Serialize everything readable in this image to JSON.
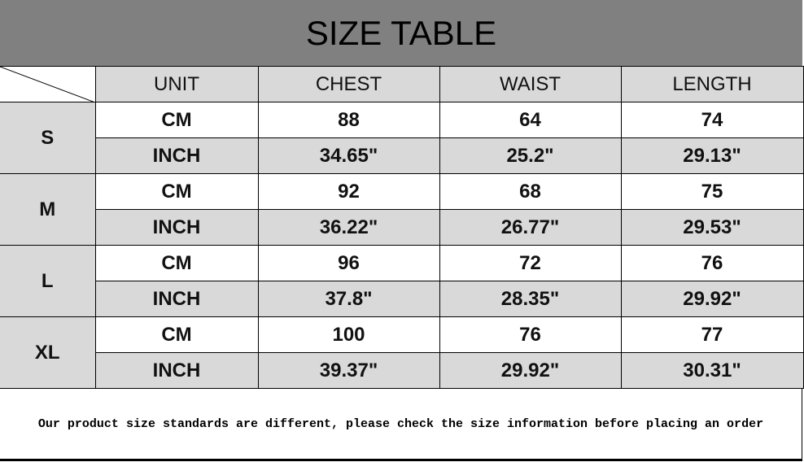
{
  "title": "SIZE TABLE",
  "headers": [
    "UNIT",
    "CHEST",
    "WAIST",
    "LENGTH"
  ],
  "sizes": [
    {
      "size": "S",
      "rows": [
        {
          "unit": "CM",
          "chest": "88",
          "waist": "64",
          "length": "74"
        },
        {
          "unit": "INCH",
          "chest": "34.65\"",
          "waist": "25.2\"",
          "length": "29.13\""
        }
      ]
    },
    {
      "size": "M",
      "rows": [
        {
          "unit": "CM",
          "chest": "92",
          "waist": "68",
          "length": "75"
        },
        {
          "unit": "INCH",
          "chest": "36.22\"",
          "waist": "26.77\"",
          "length": "29.53\""
        }
      ]
    },
    {
      "size": "L",
      "rows": [
        {
          "unit": "CM",
          "chest": "96",
          "waist": "72",
          "length": "76"
        },
        {
          "unit": "INCH",
          "chest": "37.8\"",
          "waist": "28.35\"",
          "length": "29.92\""
        }
      ]
    },
    {
      "size": "XL",
      "rows": [
        {
          "unit": "CM",
          "chest": "100",
          "waist": "76",
          "length": "77"
        },
        {
          "unit": "INCH",
          "chest": "39.37\"",
          "waist": "29.92\"",
          "length": "30.31\""
        }
      ]
    }
  ],
  "footer_note": "Our product size standards are different, please check the size information before placing an order",
  "colors": {
    "title_bg": "#808080",
    "cell_gray": "#d9d9d9"
  }
}
